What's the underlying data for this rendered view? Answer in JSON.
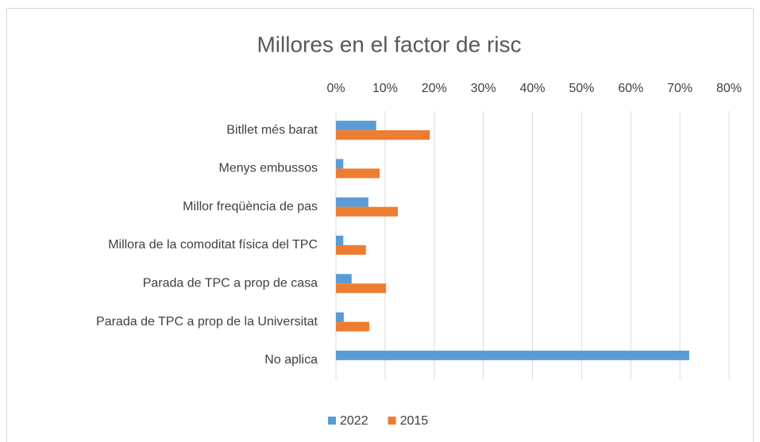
{
  "chart_data": {
    "type": "barh",
    "title": "Millores en el factor de risc",
    "categories": [
      "Bitllet més barat",
      "Menys embussos",
      "Millor freqüència de pas",
      "Millora de la comoditat física del TPC",
      "Parada de TPC a prop de casa",
      "Parada de TPC a prop de la Universitat",
      "No aplica"
    ],
    "series": [
      {
        "name": "2022",
        "color": "#5b9bd5",
        "values": [
          8.2,
          1.5,
          6.6,
          1.5,
          3.2,
          1.6,
          71.9
        ]
      },
      {
        "name": "2015",
        "color": "#ed7d31",
        "values": [
          19.1,
          8.9,
          12.6,
          6.1,
          10.2,
          6.8,
          0
        ]
      }
    ],
    "xlim": [
      0,
      80
    ],
    "xticks": [
      {
        "value": 0,
        "label": "0%"
      },
      {
        "value": 10,
        "label": "10%"
      },
      {
        "value": 20,
        "label": "20%"
      },
      {
        "value": 30,
        "label": "30%"
      },
      {
        "value": 40,
        "label": "40%"
      },
      {
        "value": 50,
        "label": "50%"
      },
      {
        "value": 60,
        "label": "60%"
      },
      {
        "value": 70,
        "label": "70%"
      },
      {
        "value": 80,
        "label": "80%"
      }
    ],
    "grid": true,
    "legend": "bottom"
  }
}
